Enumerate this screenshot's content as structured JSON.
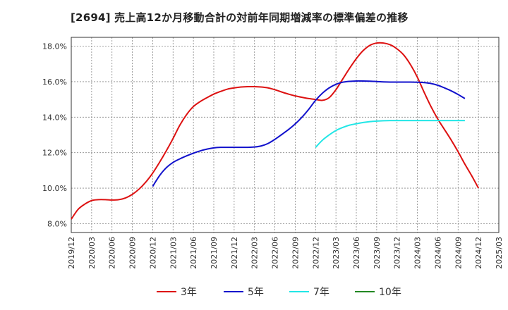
{
  "chart_data": {
    "type": "line",
    "title": "[2694]  売上高12か月移動合計の対前年同期増減率の標準偏差の推移",
    "xlabel": "",
    "ylabel": "",
    "ylim": [
      7.5,
      18.5
    ],
    "yticks": [
      8.0,
      10.0,
      12.0,
      14.0,
      16.0,
      18.0
    ],
    "ytick_labels": [
      "8.0%",
      "10.0%",
      "12.0%",
      "14.0%",
      "16.0%",
      "18.0%"
    ],
    "x_start": "2019/12",
    "x_tick_labels": [
      "2019/12",
      "2020/03",
      "2020/06",
      "2020/09",
      "2020/12",
      "2021/03",
      "2021/06",
      "2021/09",
      "2021/12",
      "2022/03",
      "2022/06",
      "2022/09",
      "2022/12",
      "2023/03",
      "2023/06",
      "2023/09",
      "2023/12",
      "2024/03",
      "2024/06",
      "2024/09",
      "2024/12",
      "2025/03"
    ],
    "grid": true,
    "legend_position": "bottom",
    "series": [
      {
        "name": "3年",
        "color": "#dd1111",
        "start": "2019/12",
        "values": [
          8.25,
          8.8,
          9.1,
          9.3,
          9.35,
          9.35,
          9.33,
          9.35,
          9.45,
          9.65,
          9.95,
          10.35,
          10.85,
          11.45,
          12.1,
          12.8,
          13.55,
          14.15,
          14.6,
          14.88,
          15.1,
          15.3,
          15.45,
          15.58,
          15.65,
          15.7,
          15.72,
          15.72,
          15.7,
          15.65,
          15.55,
          15.42,
          15.3,
          15.2,
          15.12,
          15.05,
          15.0,
          14.95,
          15.1,
          15.55,
          16.15,
          16.75,
          17.3,
          17.75,
          18.05,
          18.18,
          18.18,
          18.08,
          17.85,
          17.5,
          16.95,
          16.25,
          15.4,
          14.6,
          13.9,
          13.3,
          12.7,
          12.05,
          11.35,
          10.7,
          10.0
        ]
      },
      {
        "name": "5年",
        "color": "#1111cc",
        "start": "2020/12",
        "values": [
          10.1,
          10.7,
          11.15,
          11.45,
          11.65,
          11.82,
          11.97,
          12.1,
          12.2,
          12.27,
          12.3,
          12.3,
          12.3,
          12.3,
          12.3,
          12.32,
          12.38,
          12.52,
          12.75,
          13.02,
          13.3,
          13.62,
          14.0,
          14.45,
          14.95,
          15.35,
          15.65,
          15.85,
          15.97,
          16.02,
          16.04,
          16.04,
          16.03,
          16.01,
          15.99,
          15.98,
          15.98,
          15.98,
          15.98,
          15.97,
          15.95,
          15.9,
          15.8,
          15.65,
          15.48,
          15.28,
          15.05
        ]
      },
      {
        "name": "7年",
        "color": "#22e6e6",
        "start": "2022/12",
        "values": [
          12.3,
          12.7,
          13.0,
          13.25,
          13.42,
          13.55,
          13.63,
          13.7,
          13.75,
          13.78,
          13.8,
          13.81,
          13.81,
          13.81,
          13.81,
          13.81,
          13.81,
          13.81,
          13.81,
          13.81,
          13.81,
          13.81,
          13.81
        ]
      },
      {
        "name": "10年",
        "color": "#228822",
        "start": "2024/12",
        "values": []
      }
    ]
  }
}
